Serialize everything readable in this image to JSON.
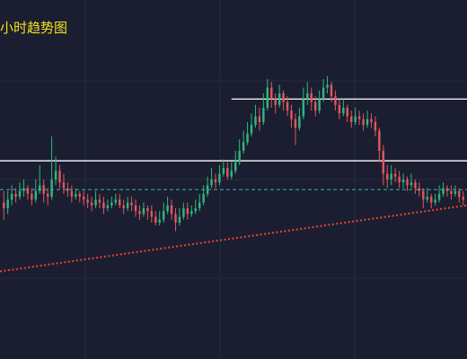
{
  "chart_data": {
    "type": "candlestick",
    "title": "小时趋势图",
    "xlabel": "",
    "ylabel": "",
    "grid": true,
    "legend": "none",
    "colors": {
      "background": "#1b1e30",
      "grid": "#262a40",
      "up": "#2fb67f",
      "down": "#e0565f",
      "title": "#f2e21c",
      "level_line": "#ffffff",
      "dashed_line": "#2fb7b0",
      "trend_line": "#e8452a"
    },
    "ylim": [
      0,
      100
    ],
    "candles": [
      [
        42,
        40,
        46,
        36
      ],
      [
        40,
        43,
        46,
        38
      ],
      [
        43,
        45,
        48,
        41
      ],
      [
        45,
        44,
        47,
        42
      ],
      [
        44,
        46,
        49,
        43
      ],
      [
        46,
        47,
        50,
        44
      ],
      [
        47,
        45,
        48,
        43
      ],
      [
        45,
        43,
        47,
        41
      ],
      [
        43,
        46,
        50,
        42
      ],
      [
        46,
        48,
        55,
        45
      ],
      [
        48,
        45,
        50,
        42
      ],
      [
        45,
        44,
        47,
        41
      ],
      [
        44,
        50,
        65,
        43
      ],
      [
        50,
        53,
        58,
        48
      ],
      [
        53,
        49,
        55,
        47
      ],
      [
        49,
        47,
        52,
        45
      ],
      [
        47,
        46,
        49,
        44
      ],
      [
        46,
        44,
        48,
        42
      ],
      [
        44,
        45,
        47,
        43
      ],
      [
        45,
        44,
        46,
        42
      ],
      [
        44,
        43,
        46,
        41
      ],
      [
        43,
        42,
        45,
        40
      ],
      [
        42,
        41,
        44,
        39
      ],
      [
        41,
        43,
        46,
        40
      ],
      [
        43,
        42,
        45,
        40
      ],
      [
        42,
        40,
        44,
        38
      ],
      [
        40,
        41,
        43,
        39
      ],
      [
        41,
        42,
        44,
        40
      ],
      [
        42,
        43,
        45,
        41
      ],
      [
        43,
        41,
        45,
        40
      ],
      [
        41,
        40,
        43,
        38
      ],
      [
        40,
        42,
        44,
        39
      ],
      [
        42,
        41,
        44,
        39
      ],
      [
        41,
        39,
        43,
        37
      ],
      [
        39,
        38,
        41,
        36
      ],
      [
        38,
        40,
        42,
        37
      ],
      [
        40,
        39,
        41,
        36
      ],
      [
        39,
        37,
        41,
        35
      ],
      [
        37,
        35,
        39,
        34
      ],
      [
        35,
        36,
        39,
        34
      ],
      [
        36,
        39,
        42,
        35
      ],
      [
        39,
        41,
        44,
        38
      ],
      [
        41,
        38,
        43,
        36
      ],
      [
        38,
        35,
        40,
        32
      ],
      [
        35,
        37,
        40,
        34
      ],
      [
        37,
        40,
        42,
        36
      ],
      [
        40,
        38,
        42,
        36
      ],
      [
        38,
        39,
        41,
        37
      ],
      [
        39,
        40,
        43,
        38
      ],
      [
        40,
        42,
        45,
        39
      ],
      [
        42,
        45,
        48,
        41
      ],
      [
        45,
        48,
        51,
        44
      ],
      [
        48,
        50,
        54,
        47
      ],
      [
        50,
        49,
        52,
        47
      ],
      [
        49,
        52,
        55,
        48
      ],
      [
        52,
        54,
        57,
        51
      ],
      [
        54,
        51,
        56,
        50
      ],
      [
        51,
        53,
        56,
        50
      ],
      [
        53,
        56,
        60,
        52
      ],
      [
        56,
        60,
        64,
        55
      ],
      [
        60,
        63,
        67,
        59
      ],
      [
        63,
        66,
        70,
        62
      ],
      [
        66,
        69,
        73,
        65
      ],
      [
        69,
        72,
        76,
        68
      ],
      [
        72,
        70,
        75,
        67
      ],
      [
        70,
        75,
        80,
        69
      ],
      [
        75,
        82,
        85,
        74
      ],
      [
        82,
        78,
        84,
        75
      ],
      [
        78,
        76,
        80,
        73
      ],
      [
        76,
        80,
        83,
        75
      ],
      [
        80,
        77,
        81,
        74
      ],
      [
        77,
        74,
        79,
        72
      ],
      [
        74,
        71,
        76,
        68
      ],
      [
        71,
        68,
        73,
        62
      ],
      [
        68,
        72,
        75,
        67
      ],
      [
        72,
        78,
        82,
        71
      ],
      [
        78,
        80,
        84,
        76
      ],
      [
        80,
        77,
        82,
        74
      ],
      [
        77,
        74,
        79,
        72
      ],
      [
        74,
        78,
        81,
        73
      ],
      [
        78,
        82,
        85,
        77
      ],
      [
        82,
        83,
        86,
        80
      ],
      [
        83,
        79,
        84,
        77
      ],
      [
        79,
        76,
        81,
        74
      ],
      [
        76,
        73,
        78,
        71
      ],
      [
        73,
        75,
        78,
        72
      ],
      [
        75,
        72,
        76,
        70
      ],
      [
        72,
        70,
        74,
        68
      ],
      [
        70,
        72,
        75,
        69
      ],
      [
        72,
        71,
        74,
        69
      ],
      [
        71,
        69,
        73,
        67
      ],
      [
        69,
        71,
        74,
        68
      ],
      [
        71,
        70,
        73,
        68
      ],
      [
        70,
        67,
        72,
        65
      ],
      [
        67,
        60,
        68,
        56
      ],
      [
        60,
        52,
        62,
        48
      ],
      [
        52,
        50,
        55,
        47
      ],
      [
        50,
        52,
        55,
        48
      ],
      [
        52,
        51,
        54,
        49
      ],
      [
        51,
        49,
        53,
        47
      ],
      [
        49,
        50,
        52,
        47
      ],
      [
        50,
        48,
        51,
        46
      ],
      [
        48,
        49,
        52,
        47
      ],
      [
        49,
        47,
        50,
        45
      ],
      [
        47,
        46,
        49,
        44
      ],
      [
        46,
        43,
        47,
        40
      ],
      [
        43,
        44,
        47,
        42
      ],
      [
        44,
        42,
        45,
        40
      ],
      [
        42,
        43,
        45,
        41
      ],
      [
        43,
        45,
        48,
        42
      ],
      [
        45,
        47,
        49,
        44
      ],
      [
        47,
        46,
        48,
        44
      ],
      [
        46,
        45,
        48,
        43
      ],
      [
        45,
        46,
        48,
        44
      ],
      [
        46,
        44,
        47,
        42
      ],
      [
        44,
        43,
        46,
        41
      ]
    ],
    "lines": {
      "resistance_upper": 78,
      "resistance_mid": 56.5,
      "support_dashed": 46.5,
      "trend": [
        18,
        41
      ]
    }
  }
}
